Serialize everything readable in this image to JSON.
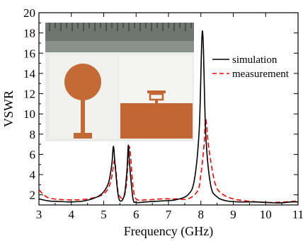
{
  "chart_data": {
    "type": "line",
    "title": "",
    "xlabel": "Frequency (GHz)",
    "ylabel": "VSWR",
    "xlim": [
      3,
      11
    ],
    "ylim": [
      1,
      20
    ],
    "xticks": [
      "3",
      "4",
      "5",
      "6",
      "7",
      "8",
      "9",
      "10",
      "11"
    ],
    "yticks": [
      "2",
      "4",
      "6",
      "8",
      "10",
      "12",
      "14",
      "16",
      "18",
      "20"
    ],
    "grid": false,
    "legend_position": "top-right",
    "inset": "antenna-photo",
    "series": [
      {
        "name": "simulation",
        "color": "#000000",
        "style": "solid",
        "x": [
          3.0,
          3.3,
          3.6,
          4.0,
          4.4,
          4.8,
          5.0,
          5.15,
          5.25,
          5.3,
          5.35,
          5.45,
          5.55,
          5.65,
          5.72,
          5.76,
          5.8,
          5.9,
          6.0,
          6.3,
          6.8,
          7.2,
          7.6,
          7.8,
          7.95,
          8.05,
          8.15,
          8.3,
          8.5,
          8.8,
          9.2,
          9.6,
          10.0,
          10.4,
          10.8,
          11.0
        ],
        "y": [
          1.6,
          1.4,
          1.35,
          1.3,
          1.4,
          1.8,
          2.3,
          3.2,
          5.0,
          6.8,
          5.0,
          1.9,
          1.4,
          2.2,
          4.5,
          6.9,
          5.0,
          1.7,
          1.25,
          1.3,
          1.4,
          1.5,
          2.0,
          3.5,
          8.5,
          18.2,
          8.0,
          3.0,
          1.8,
          1.4,
          1.3,
          1.3,
          1.25,
          1.2,
          1.3,
          1.3
        ]
      },
      {
        "name": "measurement",
        "color": "#ff0000",
        "style": "dashed",
        "x": [
          3.0,
          3.15,
          3.3,
          3.6,
          4.0,
          4.4,
          4.8,
          5.0,
          5.15,
          5.25,
          5.33,
          5.38,
          5.45,
          5.6,
          5.7,
          5.78,
          5.83,
          5.9,
          6.0,
          6.3,
          6.8,
          7.2,
          7.6,
          7.9,
          8.0,
          8.1,
          8.15,
          8.25,
          8.45,
          8.7,
          9.0,
          9.4,
          9.8,
          10.2,
          10.6,
          11.0
        ],
        "y": [
          2.5,
          2.0,
          1.7,
          1.55,
          1.5,
          1.55,
          1.8,
          2.1,
          2.7,
          3.8,
          5.4,
          4.3,
          2.2,
          1.7,
          3.0,
          6.6,
          5.8,
          3.0,
          1.6,
          1.5,
          1.6,
          1.6,
          1.6,
          2.4,
          4.0,
          7.0,
          9.5,
          6.5,
          3.0,
          2.0,
          1.6,
          1.4,
          1.3,
          1.25,
          1.3,
          1.4
        ]
      }
    ]
  }
}
